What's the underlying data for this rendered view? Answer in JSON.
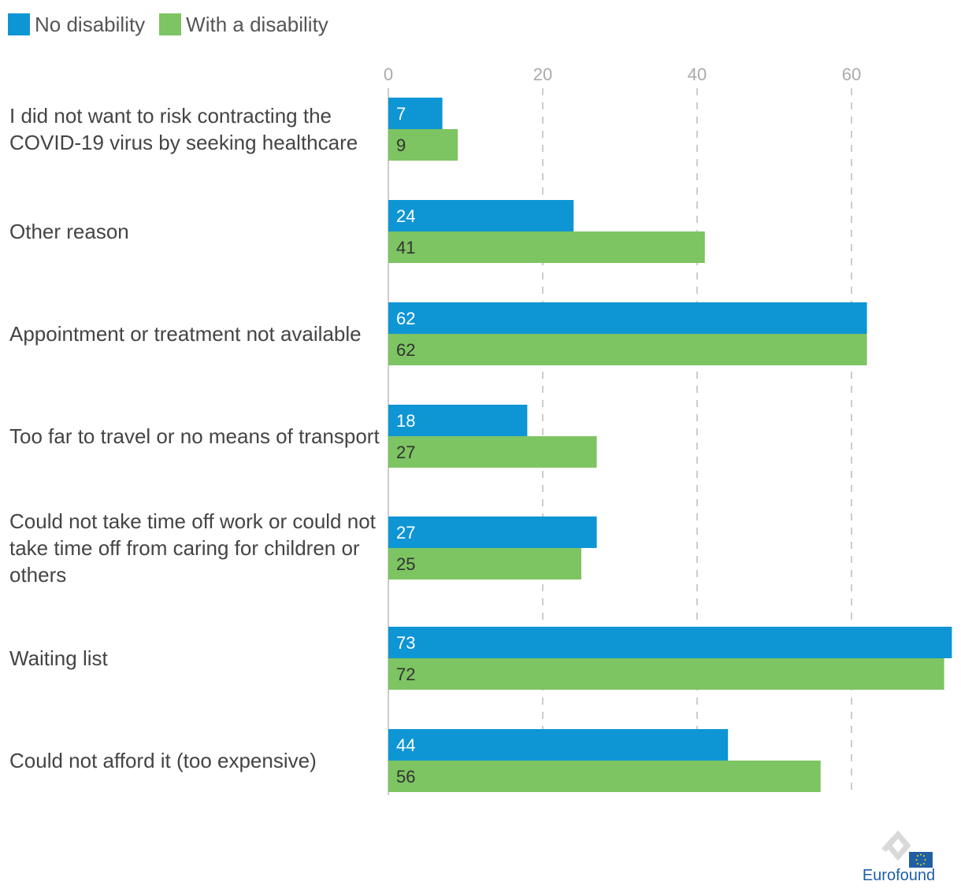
{
  "colors": {
    "no_disability": "#0e95d4",
    "with_disability": "#7dc462",
    "grid": "#cccccc",
    "axis": "#cccccc",
    "logo_blue": "#1f5fa6"
  },
  "legend": [
    {
      "label": "No disability",
      "color": "#0e95d4"
    },
    {
      "label": "With a disability",
      "color": "#7dc462"
    }
  ],
  "chart_data": {
    "type": "bar",
    "orientation": "horizontal",
    "categories": [
      [
        "I did not want to risk contracting the",
        "COVID-19 virus by seeking healthcare"
      ],
      [
        "Other reason"
      ],
      [
        "Appointment or treatment not available"
      ],
      [
        "Too far to travel or no means of transport"
      ],
      [
        "Could not take time off work or could not",
        "take time off from caring for children or",
        "others"
      ],
      [
        "Waiting list"
      ],
      [
        "Could not afford it (too expensive)"
      ]
    ],
    "series": [
      {
        "name": "No disability",
        "values": [
          7,
          24,
          62,
          18,
          27,
          73,
          44
        ]
      },
      {
        "name": "With a disability",
        "values": [
          9,
          41,
          62,
          27,
          25,
          72,
          56
        ]
      }
    ],
    "xlim": [
      0,
      73
    ],
    "xticks": [
      "0",
      "20",
      "40",
      "60"
    ],
    "grid": true,
    "legend_position": "top-left"
  },
  "logo": {
    "text": "Eurofound"
  }
}
